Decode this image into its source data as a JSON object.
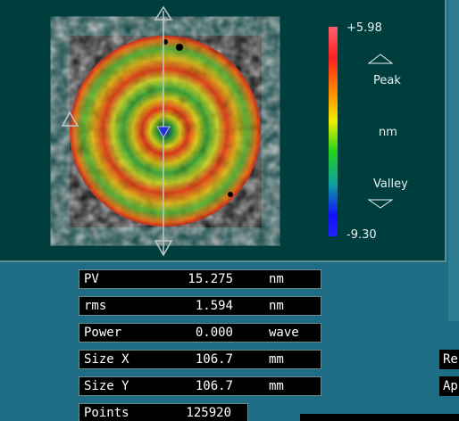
{
  "colorbar": {
    "max": "+5.98",
    "peak": "Peak",
    "unit": "nm",
    "valley": "Valley",
    "min": "-9.30"
  },
  "results": [
    {
      "label": "PV",
      "value": "15.275",
      "unit": "nm"
    },
    {
      "label": "rms",
      "value": "1.594",
      "unit": "nm"
    },
    {
      "label": "Power",
      "value": "0.000",
      "unit": "wave"
    },
    {
      "label": "Size X",
      "value": "106.7",
      "unit": "mm"
    },
    {
      "label": "Size Y",
      "value": "106.7",
      "unit": "mm"
    },
    {
      "label": "Points",
      "value": "125920"
    }
  ],
  "buttons": [
    "Re",
    "Ap"
  ]
}
